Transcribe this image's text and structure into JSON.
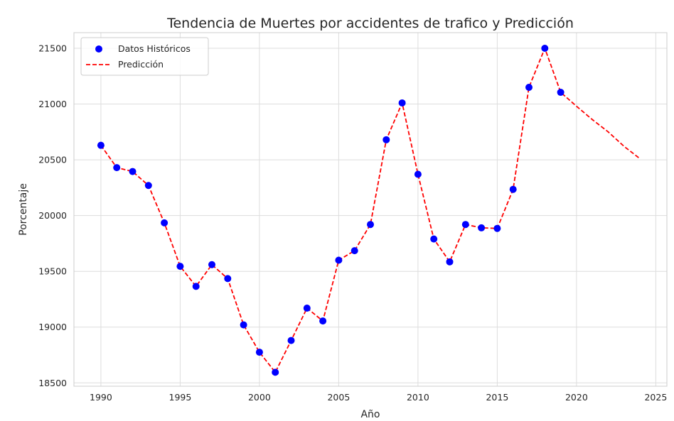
{
  "chart_data": {
    "type": "line",
    "title": "Tendencia de Muertes por accidentes de trafico y Predicción",
    "xlabel": "Año",
    "ylabel": "Porcentaje",
    "xlim": [
      1988.3,
      2025.7
    ],
    "ylim": [
      18470,
      21640
    ],
    "xticks": [
      1990,
      1995,
      2000,
      2005,
      2010,
      2015,
      2020,
      2025
    ],
    "yticks": [
      18500,
      19000,
      19500,
      20000,
      20500,
      21000,
      21500
    ],
    "grid": true,
    "legend_position": "top-left",
    "series": [
      {
        "name": "Datos Históricos",
        "kind": "scatter",
        "color": "#0000ff",
        "x": [
          1990,
          1991,
          1992,
          1993,
          1994,
          1995,
          1996,
          1997,
          1998,
          1999,
          2000,
          2001,
          2002,
          2003,
          2004,
          2005,
          2006,
          2007,
          2008,
          2009,
          2010,
          2011,
          2012,
          2013,
          2014,
          2015,
          2016,
          2017,
          2018,
          2019
        ],
        "y": [
          20630,
          20430,
          20395,
          20270,
          19935,
          19545,
          19365,
          19560,
          19435,
          19020,
          18775,
          18595,
          18880,
          19170,
          19055,
          19600,
          19685,
          19920,
          20680,
          21010,
          20370,
          19790,
          19585,
          19920,
          19890,
          19885,
          20235,
          21150,
          21500,
          21105
        ]
      },
      {
        "name": "Predicción",
        "kind": "line",
        "color": "#ff0000",
        "dash": true,
        "x": [
          1990,
          1991,
          1992,
          1993,
          1994,
          1995,
          1996,
          1997,
          1998,
          1999,
          2000,
          2001,
          2002,
          2003,
          2004,
          2005,
          2006,
          2007,
          2008,
          2009,
          2010,
          2011,
          2012,
          2013,
          2014,
          2015,
          2016,
          2017,
          2018,
          2019,
          2020,
          2021,
          2022,
          2023,
          2024
        ],
        "y": [
          20630,
          20430,
          20395,
          20270,
          19935,
          19545,
          19365,
          19560,
          19435,
          19020,
          18775,
          18595,
          18880,
          19170,
          19055,
          19600,
          19685,
          19920,
          20680,
          21010,
          20370,
          19790,
          19585,
          19920,
          19890,
          19885,
          20235,
          21150,
          21500,
          21105,
          20980,
          20860,
          20750,
          20620,
          20510
        ]
      }
    ]
  }
}
